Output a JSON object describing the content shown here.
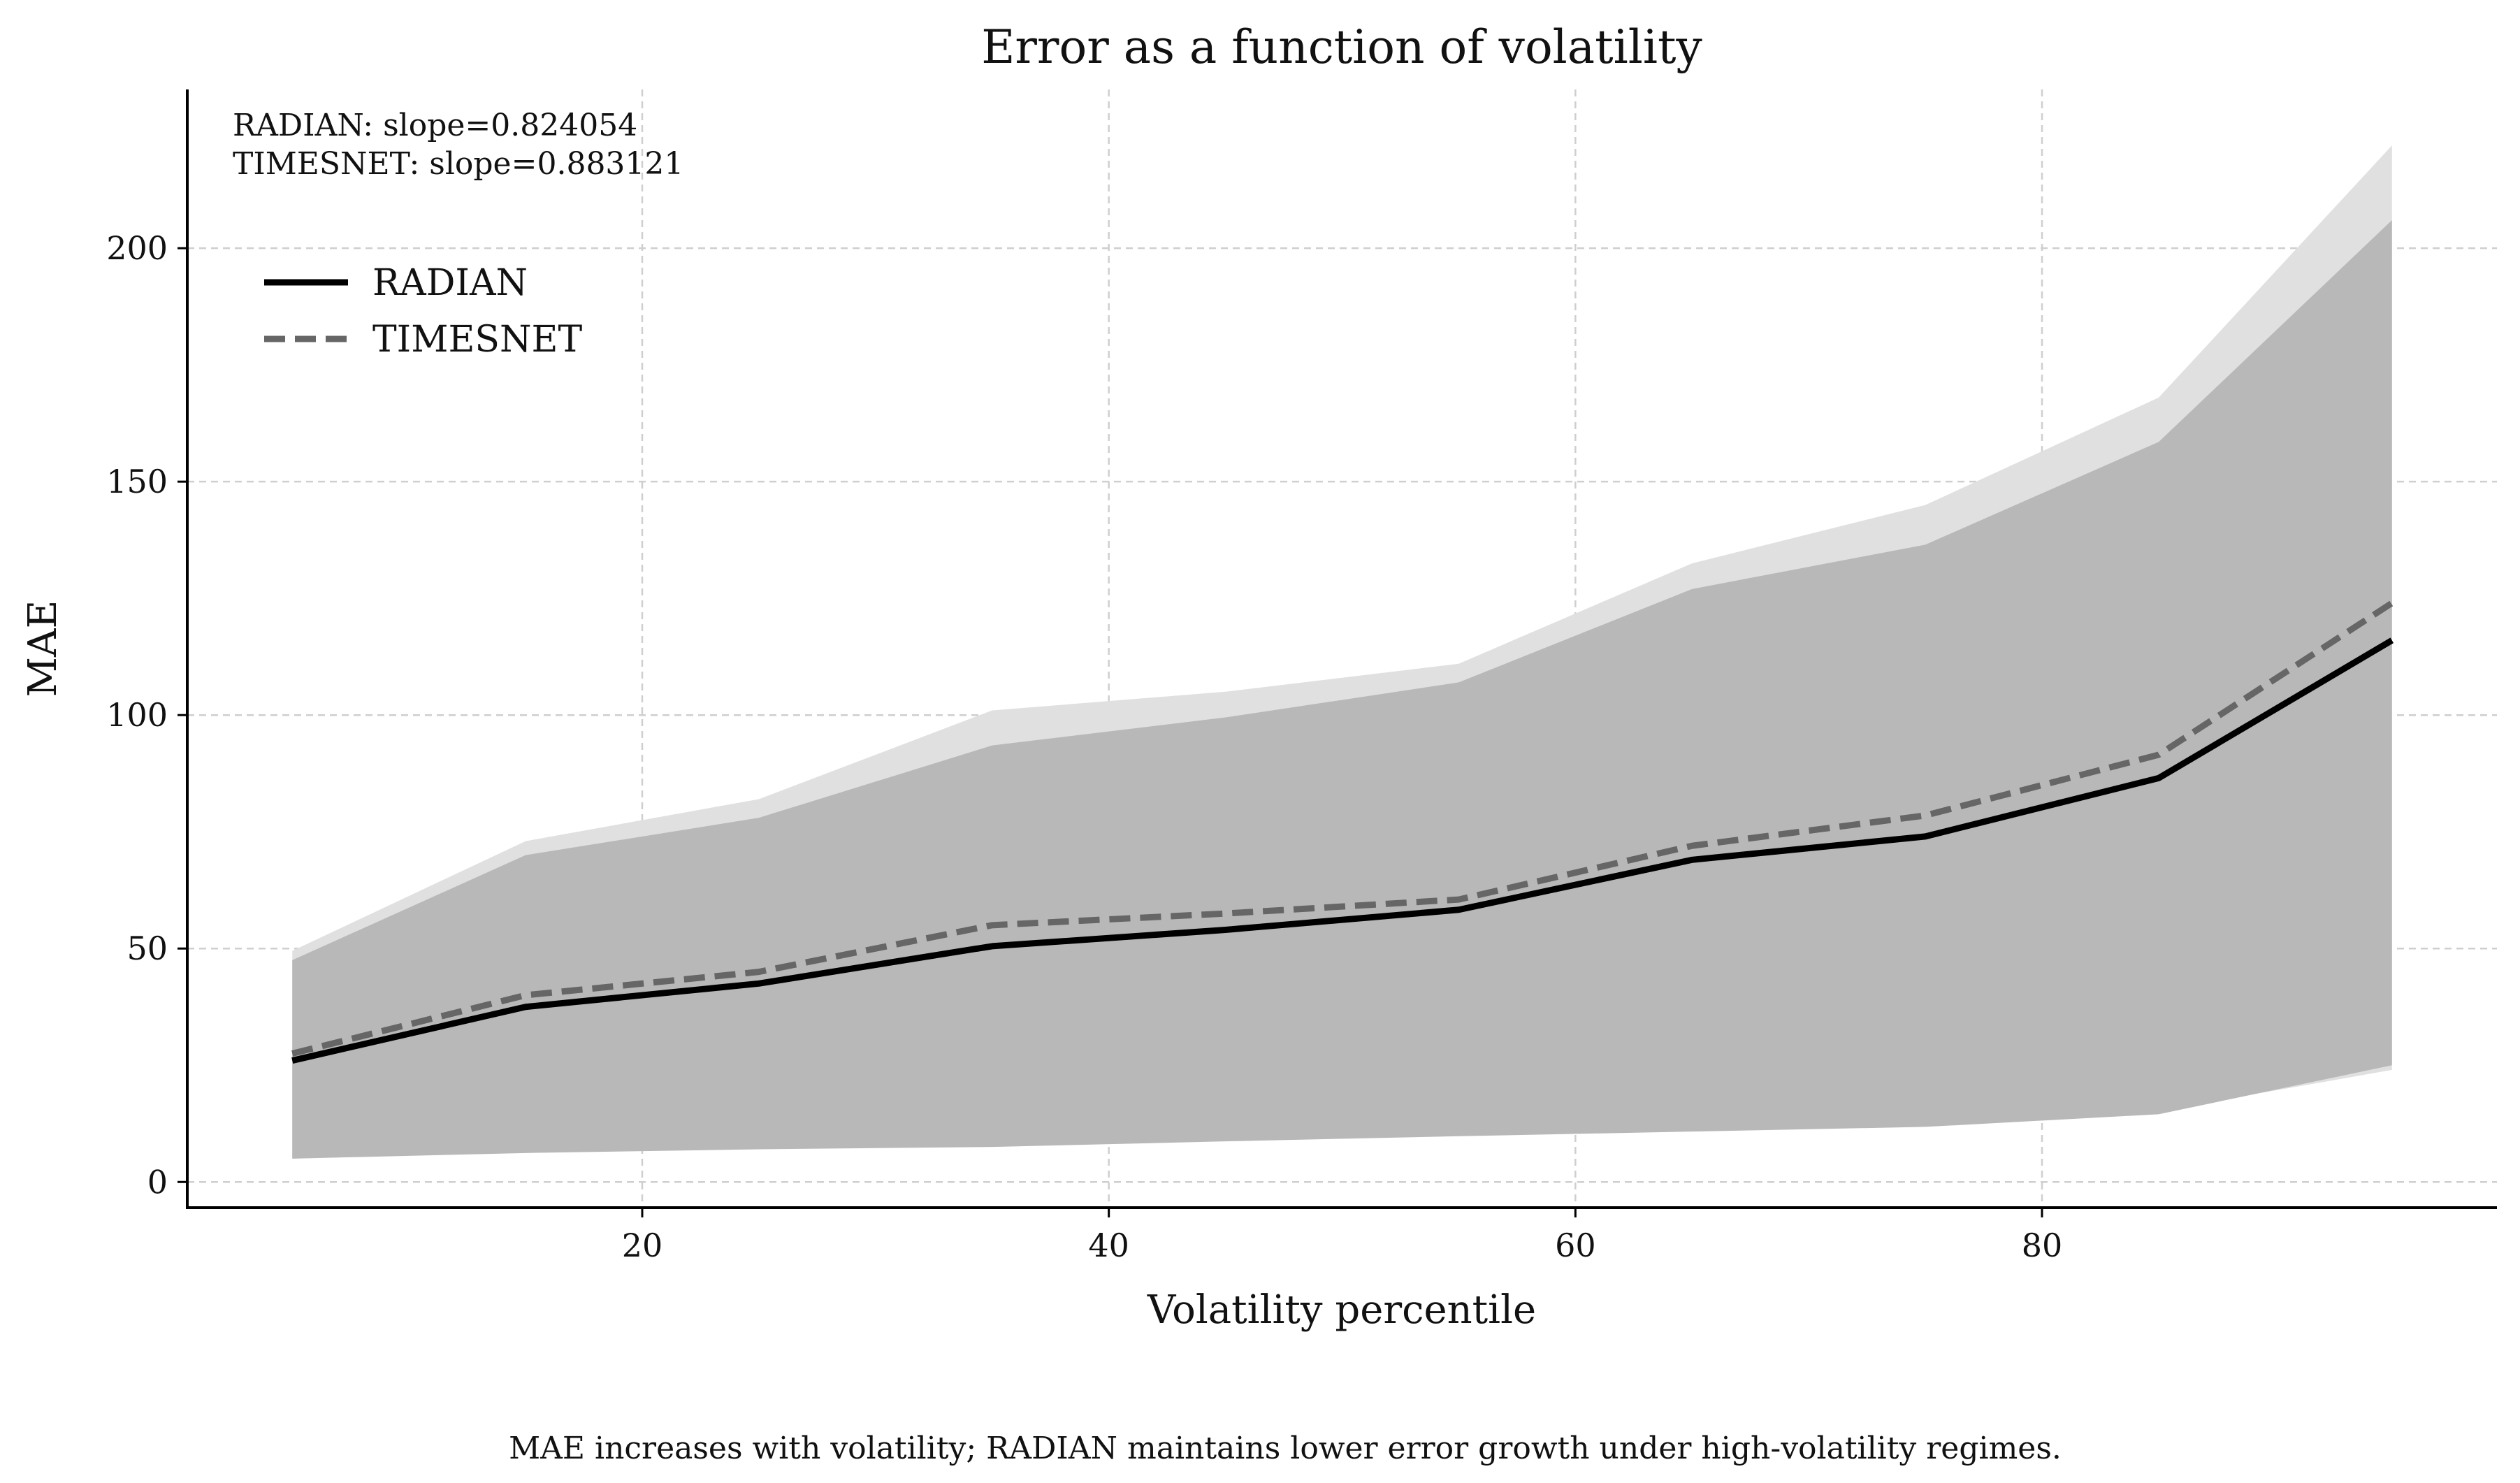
{
  "chart_data": {
    "type": "area",
    "title": "Error as a function of volatility",
    "xlabel": "Volatility percentile",
    "ylabel": "MAE",
    "xlim": [
      0.5,
      99.5
    ],
    "ylim": [
      -5.5,
      234
    ],
    "xticks": [
      20,
      40,
      60,
      80
    ],
    "yticks": [
      0,
      50,
      100,
      150,
      200
    ],
    "grid": true,
    "legend_position": "upper-left",
    "x": [
      5,
      15,
      25,
      35,
      45,
      55,
      65,
      75,
      85,
      95
    ],
    "series": [
      {
        "name": "RADIAN",
        "style": "solid",
        "color": "#000000",
        "values": [
          26,
          37.5,
          42.5,
          50.5,
          54,
          58.3,
          69,
          74,
          86.5,
          116
        ],
        "band_lower": [
          5,
          6.2,
          7,
          7.5,
          8.7,
          9.8,
          10.8,
          11.8,
          14.5,
          25
        ],
        "band_upper": [
          47.5,
          70,
          78,
          93.5,
          99.5,
          107,
          127,
          136.5,
          158.5,
          206
        ],
        "band_color": "#b8b8b8"
      },
      {
        "name": "TIMESNET",
        "style": "dashed",
        "color": "#666666",
        "values": [
          27.5,
          40,
          45,
          55,
          57.5,
          60.5,
          72,
          78.5,
          91.5,
          124
        ],
        "band_lower": [
          5,
          6.3,
          7.2,
          7.8,
          9,
          10.2,
          11.2,
          12.2,
          15.2,
          24
        ],
        "band_upper": [
          49.5,
          73,
          82,
          101,
          105,
          111,
          132.5,
          145,
          168,
          222
        ],
        "band_color": "#e0e0e0"
      }
    ],
    "annotations": [
      "RADIAN: slope=0.824054",
      "TIMESNET: slope=0.883121"
    ]
  },
  "caption": "MAE increases with volatility; RADIAN maintains lower error growth under high-volatility regimes."
}
